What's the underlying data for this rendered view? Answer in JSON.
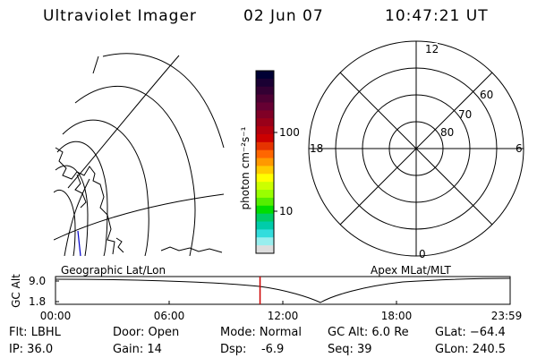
{
  "header": {
    "instrument": "Ultraviolet Imager",
    "date": "02 Jun 07",
    "time": "10:47:21 UT"
  },
  "colorbar": {
    "unit_label": "photon cm⁻²s⁻¹",
    "ticks": [
      "100",
      "10"
    ],
    "colors": [
      "#000033",
      "#1a0033",
      "#330033",
      "#4d0033",
      "#660033",
      "#800026",
      "#990019",
      "#b3000d",
      "#cc0000",
      "#e63300",
      "#ff6600",
      "#ff9900",
      "#ffcc00",
      "#ffff00",
      "#ccff00",
      "#99ff00",
      "#55ee00",
      "#00dd00",
      "#00cc66",
      "#00ccaa",
      "#33dddd",
      "#99eeee",
      "#dddddd"
    ]
  },
  "polar_plot": {
    "mlt_labels": {
      "top": "12",
      "left": "18",
      "right": "6",
      "bottom": "0"
    },
    "lat_labels": [
      "60",
      "70",
      "80"
    ]
  },
  "geo_plot": {
    "label": "Geographic Lat/Lon"
  },
  "apex_label": "Apex MLat/MLT",
  "altitude_chart": {
    "ylabel": "GC Alt",
    "yticks": [
      "9.0",
      "1.8"
    ],
    "xticks": [
      "00:00",
      "06:00",
      "12:00",
      "18:00",
      "23:59"
    ],
    "current_time_fraction": 0.4499
  },
  "status": {
    "filter": "Flt: LBHL",
    "ip": "IP: 36.0",
    "door": "Door: Open",
    "gain": "Gain: 14",
    "mode": "Mode: Normal",
    "dsp": "Dsp:    -6.9",
    "gc_alt": "GC Alt: 6.0 Re",
    "seq": "Seq: 39",
    "glat": "GLat: −64.4",
    "glon": "GLon: 240.5"
  },
  "colors": {
    "marker": "#cc0000",
    "background": "#ffffff",
    "lines": "#000000"
  }
}
